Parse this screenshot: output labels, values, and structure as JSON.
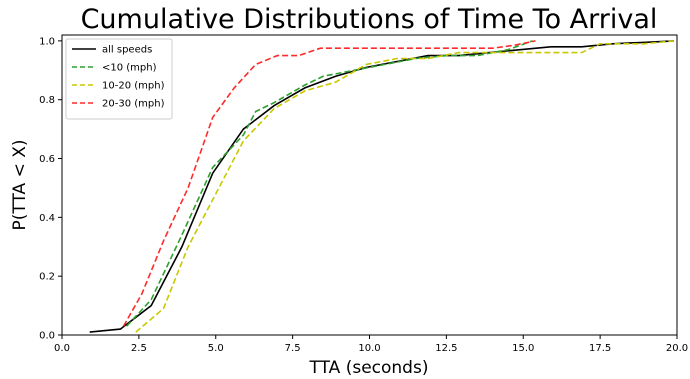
{
  "chart_data": {
    "type": "line",
    "title": "Cumulative Distributions of Time To Arrival",
    "xlabel": "TTA (seconds)",
    "ylabel": "P(TTA < X)",
    "xlim": [
      0,
      20
    ],
    "ylim": [
      0,
      1.02
    ],
    "xticks": [
      "0.0",
      "2.5",
      "5.0",
      "7.5",
      "10.0",
      "12.5",
      "15.0",
      "17.5",
      "20.0"
    ],
    "xtick_values": [
      0,
      2.5,
      5,
      7.5,
      10,
      12.5,
      15,
      17.5,
      20
    ],
    "yticks": [
      "0.0",
      "0.2",
      "0.4",
      "0.6",
      "0.8",
      "1.0"
    ],
    "ytick_values": [
      0,
      0.2,
      0.4,
      0.6,
      0.8,
      1.0
    ],
    "grid": false,
    "legend_position": "top-left",
    "series": [
      {
        "name": "all speeds",
        "color": "#000000",
        "dash": "solid",
        "points": [
          [
            0.9,
            0.01
          ],
          [
            1.9,
            0.02
          ],
          [
            2.9,
            0.1
          ],
          [
            3.9,
            0.3
          ],
          [
            4.9,
            0.55
          ],
          [
            5.9,
            0.7
          ],
          [
            6.9,
            0.78
          ],
          [
            7.9,
            0.84
          ],
          [
            8.9,
            0.88
          ],
          [
            9.9,
            0.91
          ],
          [
            10.9,
            0.93
          ],
          [
            11.9,
            0.95
          ],
          [
            12.9,
            0.95
          ],
          [
            13.9,
            0.96
          ],
          [
            14.9,
            0.97
          ],
          [
            15.9,
            0.98
          ],
          [
            16.9,
            0.98
          ],
          [
            17.9,
            0.99
          ],
          [
            18.9,
            0.995
          ],
          [
            19.9,
            1.0
          ]
        ]
      },
      {
        "name": "<10 (mph)",
        "color": "#2ca02c",
        "dash": "dashed",
        "points": [
          [
            2.1,
            0.03
          ],
          [
            2.9,
            0.12
          ],
          [
            3.9,
            0.34
          ],
          [
            4.9,
            0.57
          ],
          [
            5.9,
            0.68
          ],
          [
            6.3,
            0.76
          ],
          [
            6.9,
            0.79
          ],
          [
            7.9,
            0.85
          ],
          [
            8.5,
            0.88
          ],
          [
            9.5,
            0.9
          ],
          [
            10.5,
            0.92
          ],
          [
            11.5,
            0.94
          ],
          [
            12.5,
            0.95
          ],
          [
            13.5,
            0.95
          ],
          [
            14.5,
            0.97
          ],
          [
            15.3,
            1.0
          ]
        ]
      },
      {
        "name": "10-20 (mph)",
        "color": "#c8c800",
        "dash": "dashed",
        "points": [
          [
            2.4,
            0.01
          ],
          [
            3.3,
            0.09
          ],
          [
            4.1,
            0.3
          ],
          [
            4.9,
            0.46
          ],
          [
            5.9,
            0.66
          ],
          [
            6.9,
            0.77
          ],
          [
            7.9,
            0.83
          ],
          [
            8.9,
            0.86
          ],
          [
            9.9,
            0.92
          ],
          [
            10.9,
            0.94
          ],
          [
            11.9,
            0.94
          ],
          [
            12.9,
            0.96
          ],
          [
            13.9,
            0.96
          ],
          [
            14.9,
            0.96
          ],
          [
            15.9,
            0.96
          ],
          [
            16.9,
            0.96
          ],
          [
            17.5,
            0.99
          ],
          [
            18.9,
            0.99
          ],
          [
            19.9,
            1.0
          ]
        ]
      },
      {
        "name": "20-30 (mph)",
        "color": "#ff2a2a",
        "dash": "dashed",
        "points": [
          [
            2.0,
            0.03
          ],
          [
            2.6,
            0.14
          ],
          [
            3.3,
            0.32
          ],
          [
            4.1,
            0.5
          ],
          [
            4.9,
            0.74
          ],
          [
            5.6,
            0.84
          ],
          [
            6.3,
            0.92
          ],
          [
            7.0,
            0.95
          ],
          [
            7.7,
            0.95
          ],
          [
            8.4,
            0.975
          ],
          [
            9.1,
            0.975
          ],
          [
            9.8,
            0.975
          ],
          [
            10.5,
            0.975
          ],
          [
            11.2,
            0.975
          ],
          [
            11.9,
            0.975
          ],
          [
            12.6,
            0.975
          ],
          [
            13.3,
            0.975
          ],
          [
            14.0,
            0.975
          ],
          [
            14.7,
            0.985
          ],
          [
            15.4,
            1.0
          ]
        ]
      }
    ]
  }
}
